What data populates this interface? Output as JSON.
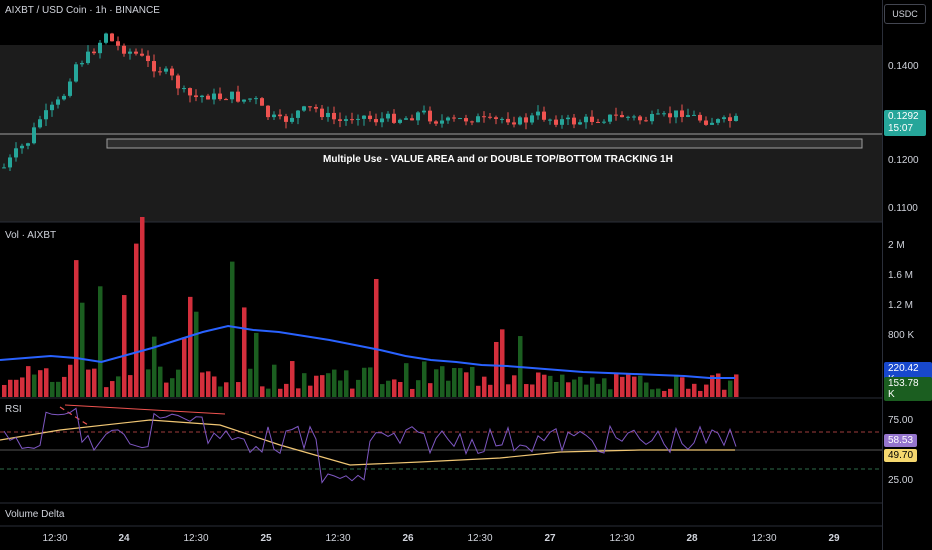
{
  "header": {
    "symbol": "AIXBT / USD Coin · 1h · BINANCE",
    "currency_button": "USDC"
  },
  "annotation": {
    "text": "Multiple Use - VALUE AREA and or DOUBLE TOP/BOTTOM TRACKING 1H"
  },
  "price_axis": {
    "ticks": [
      "0.1400",
      "0.1200",
      "0.1100"
    ],
    "current_price": "0.1292",
    "countdown": "15:07"
  },
  "volume_pane": {
    "label": "Vol · AIXBT",
    "ticks": [
      "2 M",
      "1.6 M",
      "1.2 M",
      "800 K"
    ],
    "ma_value": "220.42 K",
    "volume_value": "153.78 K"
  },
  "rsi_pane": {
    "label": "RSI",
    "ticks": [
      "75.00",
      "25.00"
    ],
    "rsi_value": "58.53",
    "ma_value": "49.70"
  },
  "volume_delta_pane": {
    "label": "Volume Delta"
  },
  "time_axis": {
    "ticks": [
      {
        "label": "12:30",
        "bold": false
      },
      {
        "label": "24",
        "bold": true
      },
      {
        "label": "12:30",
        "bold": false
      },
      {
        "label": "25",
        "bold": true
      },
      {
        "label": "12:30",
        "bold": false
      },
      {
        "label": "26",
        "bold": true
      },
      {
        "label": "12:30",
        "bold": false
      },
      {
        "label": "27",
        "bold": true
      },
      {
        "label": "12:30",
        "bold": false
      },
      {
        "label": "28",
        "bold": true
      },
      {
        "label": "12:30",
        "bold": false
      },
      {
        "label": "29",
        "bold": true
      }
    ]
  },
  "colors": {
    "up": "#26a69a",
    "down": "#ef5350",
    "vol_up": "#1b5e20",
    "vol_down": "#d32f3c",
    "vol_ma": "#2962ff",
    "rsi": "#7e57c2",
    "rsi_ma": "#f0c674",
    "current_price_tag": "#26a69a",
    "vol_ma_tag": "#1848cc",
    "vol_tag": "#1b5e20",
    "rsi_tag": "#9575cd",
    "rsi_ma_tag": "#f5d76e"
  }
}
